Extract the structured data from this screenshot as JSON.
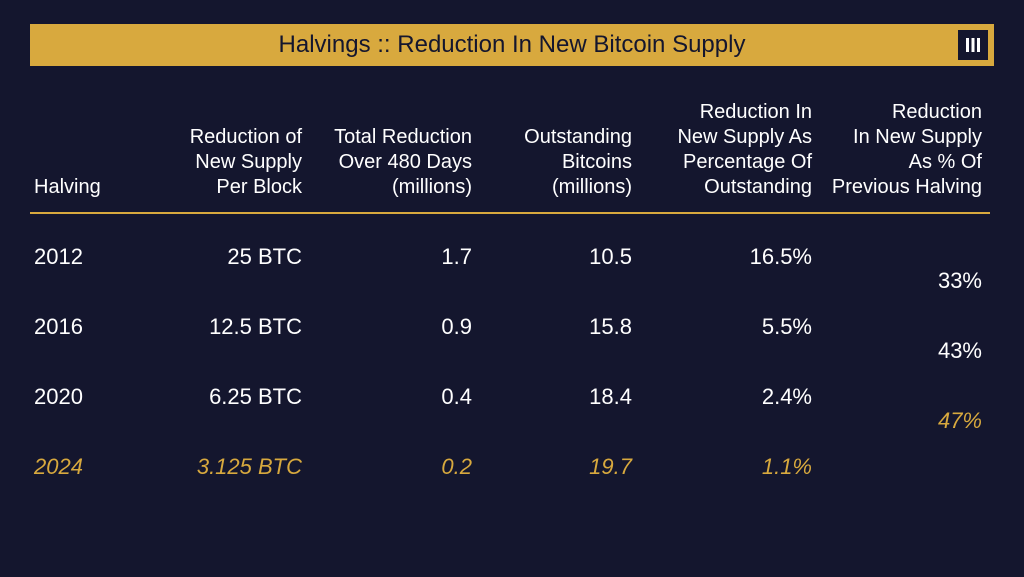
{
  "title": "Halvings :: Reduction In New Bitcoin Supply",
  "colors": {
    "background": "#14162e",
    "accent": "#d8a93e",
    "text": "#ffffff"
  },
  "table": {
    "columns": [
      "Halving",
      "Reduction of\nNew Supply\nPer Block",
      "Total Reduction\nOver 480 Days\n(millions)",
      "Outstanding\nBitcoins\n(millions)",
      "Reduction In\nNew Supply As\nPercentage Of\nOutstanding",
      "Reduction\nIn New Supply\nAs % Of\nPrevious Halving"
    ],
    "rows": [
      {
        "year": "2012",
        "reduction_per_block": "25 BTC",
        "total_reduction": "1.7",
        "outstanding": "10.5",
        "pct_outstanding": "16.5%",
        "accent": false
      },
      {
        "year": "2016",
        "reduction_per_block": "12.5 BTC",
        "total_reduction": "0.9",
        "outstanding": "15.8",
        "pct_outstanding": "5.5%",
        "accent": false
      },
      {
        "year": "2020",
        "reduction_per_block": "6.25 BTC",
        "total_reduction": "0.4",
        "outstanding": "18.4",
        "pct_outstanding": "2.4%",
        "accent": false
      },
      {
        "year": "2024",
        "reduction_per_block": "3.125 BTC",
        "total_reduction": "0.2",
        "outstanding": "19.7",
        "pct_outstanding": "1.1%",
        "accent": true
      }
    ],
    "between_rows": [
      {
        "value": "33%",
        "accent": false
      },
      {
        "value": "43%",
        "accent": false
      },
      {
        "value": "47%",
        "accent": true
      }
    ],
    "header_fontsize": 20,
    "cell_fontsize": 22,
    "divider_color": "#d8a93e"
  }
}
